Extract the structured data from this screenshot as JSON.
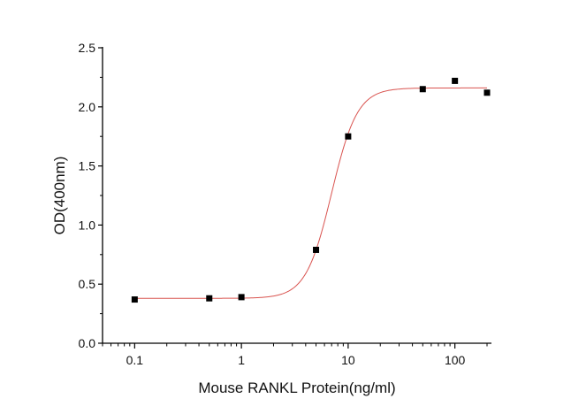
{
  "chart_data": {
    "type": "scatter",
    "title": "",
    "xlabel": "Mouse RANKL Protein(ng/ml)",
    "ylabel": "OD(400nm)",
    "xscale": "log",
    "xlim": [
      0.05,
      220
    ],
    "ylim": [
      0,
      2.5
    ],
    "grid": false,
    "legend": "none",
    "x_ticks": [
      0.1,
      1,
      10,
      100
    ],
    "x_tick_labels": [
      "0.1",
      "1",
      "10",
      "100"
    ],
    "y_ticks": [
      0,
      0.5,
      1.0,
      1.5,
      2.0,
      2.5
    ],
    "y_tick_labels": [
      "0.0",
      "0.5",
      "1.0",
      "1.5",
      "2.0",
      "2.5"
    ],
    "series": [
      {
        "marker": "square",
        "color": "#000000",
        "x": [
          0.1,
          0.5,
          1,
          5,
          10,
          50,
          100,
          200
        ],
        "y": [
          0.37,
          0.38,
          0.39,
          0.79,
          1.75,
          2.15,
          2.22,
          2.12
        ]
      }
    ],
    "fit": {
      "type": "4PL",
      "color": "#d9534f",
      "bottom": 0.38,
      "top": 2.16,
      "ec50": 7.0,
      "hill": 3.6
    }
  }
}
